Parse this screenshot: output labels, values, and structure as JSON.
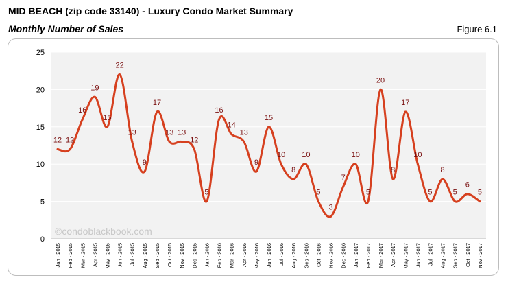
{
  "header": {
    "title": "MID BEACH (zip code 33140) - Luxury Condo Market Summary",
    "subtitle": "Monthly Number of Sales",
    "figure_label": "Figure 6.1"
  },
  "watermark": "©condoblackbook.com",
  "colors": {
    "line": "#d6401f",
    "data_label": "#7a1010",
    "plot_bg": "#f2f2f2",
    "gridline": "#ffffff"
  },
  "chart_data": {
    "type": "line",
    "title": "Monthly Number of Sales",
    "categories": [
      "Jan - 2015",
      "Feb - 2015",
      "Mar - 2015",
      "Apr - 2015",
      "May - 2015",
      "Jun - 2015",
      "Jul - 2015",
      "Aug - 2015",
      "Sep - 2015",
      "Oct - 2015",
      "Nov - 2015",
      "Dec - 2015",
      "Jan - 2016",
      "Feb - 2016",
      "Mar - 2016",
      "Apr - 2016",
      "May - 2016",
      "Jun - 2016",
      "Jul - 2016",
      "Aug - 2016",
      "Sep - 2016",
      "Oct - 2016",
      "Nov - 2016",
      "Dec - 2016",
      "Jan - 2017",
      "Feb - 2017",
      "Mar - 2017",
      "Apr - 2017",
      "May - 2017",
      "Jun - 2017",
      "Jul - 2017",
      "Aug - 2017",
      "Sep - 2017",
      "Oct - 2017",
      "Nov - 2017"
    ],
    "series": [
      {
        "values": [
          12,
          12,
          16,
          19,
          15,
          22,
          13,
          9,
          17,
          13,
          13,
          12,
          5,
          16,
          14,
          13,
          9,
          15,
          10,
          8,
          10,
          5,
          3,
          7,
          10,
          5,
          20,
          8,
          17,
          10,
          5,
          8,
          5,
          6,
          5
        ]
      }
    ],
    "ylim": [
      0,
      25
    ],
    "yticks": [
      0,
      5,
      10,
      15,
      20,
      25
    ],
    "grid": true,
    "legend": "none"
  }
}
